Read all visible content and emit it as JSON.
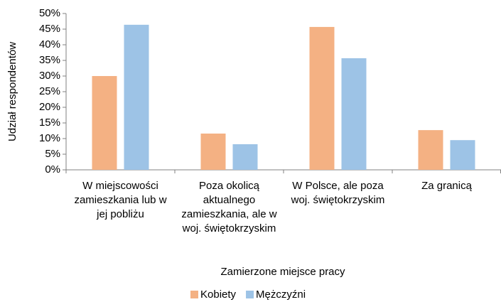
{
  "chart_data": {
    "type": "bar",
    "x_label": "Zamierzone miejsce pracy",
    "y_label": "Udział respondentów",
    "categories": [
      "W miejscowości zamieszkania lub w jej pobliżu",
      "Poza okolicą aktualnego zamieszkania, ale w woj. świętokrzyskim",
      "W Polsce, ale poza woj. świętokrzyskim",
      "Za granicą"
    ],
    "series": [
      {
        "name": "Kobiety",
        "color": "#f4b183",
        "values": [
          30.0,
          11.6,
          45.7,
          12.7
        ]
      },
      {
        "name": "Mężczyźni",
        "color": "#9dc3e6",
        "values": [
          46.4,
          8.2,
          35.7,
          9.5
        ]
      }
    ],
    "ylim": [
      0,
      50
    ],
    "yticks": [
      {
        "value": 0,
        "label": "0%"
      },
      {
        "value": 5,
        "label": "5%"
      },
      {
        "value": 10,
        "label": "10%"
      },
      {
        "value": 15,
        "label": "15%"
      },
      {
        "value": 20,
        "label": "20%"
      },
      {
        "value": 25,
        "label": "25%"
      },
      {
        "value": 30,
        "label": "30%"
      },
      {
        "value": 35,
        "label": "35%"
      },
      {
        "value": 40,
        "label": "40%"
      },
      {
        "value": 45,
        "label": "45%"
      },
      {
        "value": 50,
        "label": "50%"
      }
    ],
    "grid": false,
    "legend": "bottom"
  }
}
